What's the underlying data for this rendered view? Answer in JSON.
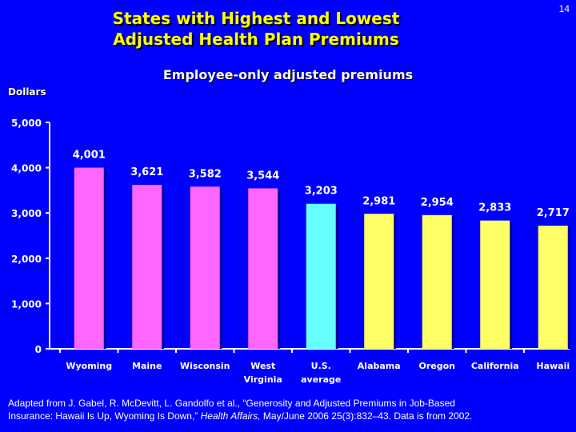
{
  "slide_number": "14",
  "colors": {
    "background": "#0000ff",
    "title": "#ffff00",
    "text": "#ffffff",
    "bar_high": "#ff66ff",
    "bar_average": "#66ffff",
    "bar_low": "#ffff66"
  },
  "chart_data": {
    "type": "bar",
    "title_lines": [
      "States with Highest and Lowest",
      "Adjusted Health Plan Premiums"
    ],
    "subtitle": "Employee-only adjusted premiums",
    "ylabel": "Dollars",
    "ylim": [
      0,
      5000
    ],
    "yticks": [
      0,
      1000,
      2000,
      3000,
      4000,
      5000
    ],
    "ytick_labels": [
      "0",
      "1,000",
      "2,000",
      "3,000",
      "4,000",
      "5,000"
    ],
    "categories": [
      [
        "Wyoming"
      ],
      [
        "Maine"
      ],
      [
        "Wisconsin"
      ],
      [
        "West",
        "Virginia"
      ],
      [
        "U.S.",
        "average"
      ],
      [
        "Alabama"
      ],
      [
        "Oregon"
      ],
      [
        "California"
      ],
      [
        "Hawaii"
      ]
    ],
    "values": [
      4001,
      3621,
      3582,
      3544,
      3203,
      2981,
      2954,
      2833,
      2717
    ],
    "value_labels": [
      "4,001",
      "3,621",
      "3,582",
      "3,544",
      "3,203",
      "2,981",
      "2,954",
      "2,833",
      "2,717"
    ],
    "bar_groups": [
      "high",
      "high",
      "high",
      "high",
      "average",
      "low",
      "low",
      "low",
      "low"
    ]
  },
  "source": {
    "line1": "Adapted from J. Gabel, R. McDevitt, L. Gandolfo et al., “Generosity and Adjusted Premiums in Job-Based",
    "line2_before": "Insurance: Hawaii Is Up, Wyoming Is Down,” ",
    "line2_journal": "Health Affairs,",
    "line2_after": " May/June 2006 25(3):832–43.  Data is from 2002."
  }
}
